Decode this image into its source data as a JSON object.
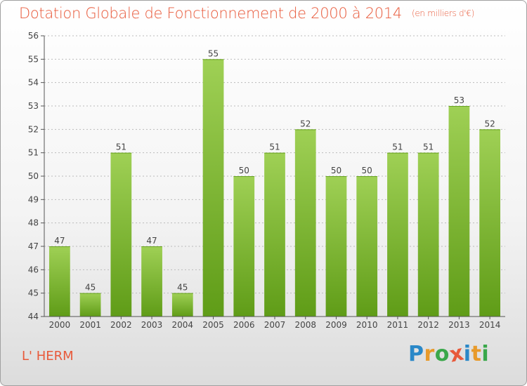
{
  "header": {
    "title": "Dotation Globale de Fonctionnement de 2000 à 2014",
    "unit": "(en milliers d'€)"
  },
  "commune": "L' HERM",
  "logo": {
    "letters": [
      "P",
      "r",
      "o",
      "x",
      "i",
      "t",
      "i"
    ],
    "colors": [
      "#2a88c8",
      "#e89a2a",
      "#3aa84a",
      "#e8593a",
      "#2a88c8",
      "#e89a2a",
      "#3aa84a"
    ]
  },
  "chart_data": {
    "type": "bar",
    "categories": [
      "2000",
      "2001",
      "2002",
      "2003",
      "2004",
      "2005",
      "2006",
      "2007",
      "2008",
      "2009",
      "2010",
      "2011",
      "2012",
      "2013",
      "2014"
    ],
    "values": [
      47,
      45,
      51,
      47,
      45,
      55,
      50,
      51,
      52,
      50,
      50,
      51,
      51,
      53,
      52
    ],
    "ylim": [
      44,
      56
    ],
    "yticks": [
      44,
      45,
      46,
      47,
      48,
      49,
      50,
      51,
      52,
      53,
      54,
      55,
      56
    ],
    "grid": true,
    "colors": {
      "bar_top": "#9fd055",
      "bar_bottom": "#5f9c17",
      "grid": "#bbbbbb",
      "axis": "#555555"
    }
  }
}
